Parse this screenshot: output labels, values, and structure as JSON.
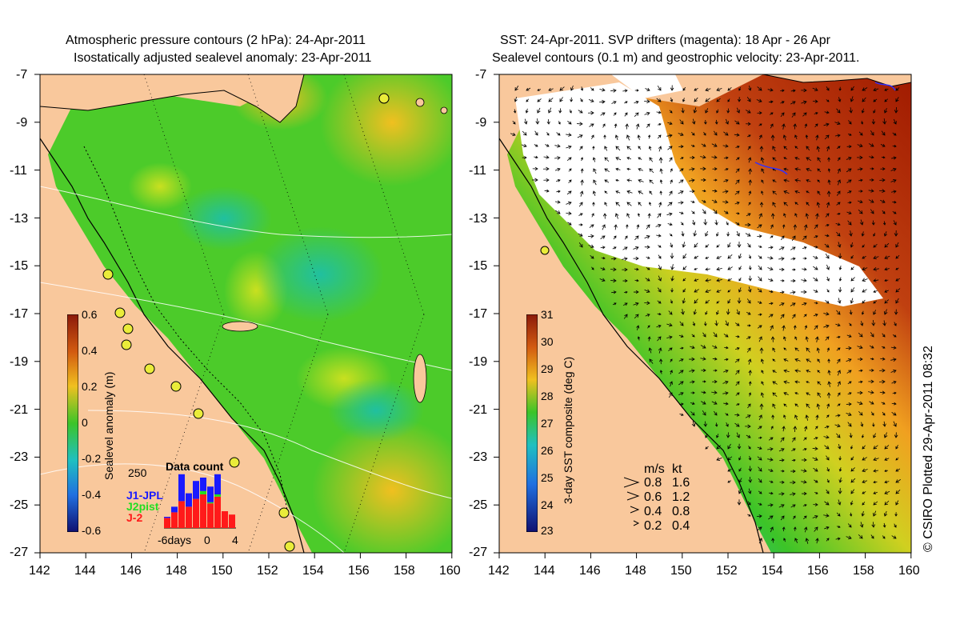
{
  "left_panel": {
    "title_line1": "Atmospheric pressure contours (2 hPa): 24-Apr-2011",
    "title_line2": "Isostatically adjusted sealevel anomaly: 23-Apr-2011",
    "colorbar_label": "Sealevel anomaly (m)",
    "colorbar_ticks": [
      "0.6",
      "0.4",
      "0.2",
      "0",
      "-0.2",
      "-0.4",
      "-0.6"
    ],
    "inset": {
      "title": "Data count",
      "ymax_label": "250",
      "x_labels": [
        "-6days",
        "0",
        "4"
      ],
      "legend": [
        {
          "label": "J1-JPL",
          "color": "#1a1aff"
        },
        {
          "label": "J2pist",
          "color": "#22dd22"
        },
        {
          "label": "J-2",
          "color": "#ff1a1a"
        }
      ],
      "bars": [
        {
          "day": -5,
          "red": 45,
          "blue": 5,
          "green": 0
        },
        {
          "day": -4,
          "red": 70,
          "blue": 25,
          "green": 0
        },
        {
          "day": -3,
          "red": 120,
          "blue": 120,
          "green": 0
        },
        {
          "day": -2,
          "red": 95,
          "blue": 60,
          "green": 0
        },
        {
          "day": -1,
          "red": 130,
          "blue": 80,
          "green": 0
        },
        {
          "day": 0,
          "red": 150,
          "blue": 60,
          "green": 15
        },
        {
          "day": 1,
          "red": 110,
          "blue": 70,
          "green": 5
        },
        {
          "day": 2,
          "red": 140,
          "blue": 90,
          "green": 10
        },
        {
          "day": 3,
          "red": 75,
          "blue": 0,
          "green": 0
        },
        {
          "day": 4,
          "red": 60,
          "blue": 0,
          "green": 0
        }
      ]
    }
  },
  "right_panel": {
    "title_line1": "SST: 24-Apr-2011. SVP drifters (magenta): 18 Apr - 26 Apr",
    "title_line2": "Sealevel contours (0.1 m) and geostrophic velocity: 23-Apr-2011.",
    "colorbar_label": "3-day SST composite (deg C)",
    "colorbar_ticks": [
      "31",
      "30",
      "29",
      "28",
      "27",
      "26",
      "25",
      "24",
      "23"
    ],
    "speed_key": {
      "header_ms": "m/s",
      "header_kt": "kt",
      "rows": [
        {
          "ms": "0.8",
          "kt": "1.6"
        },
        {
          "ms": "0.6",
          "kt": "1.2"
        },
        {
          "ms": "0.4",
          "kt": "0.8"
        },
        {
          "ms": "0.2",
          "kt": "0.4"
        }
      ]
    }
  },
  "axes": {
    "y_labels": [
      "-7",
      "-9",
      "-11",
      "-13",
      "-15",
      "-17",
      "-19",
      "-21",
      "-23",
      "-25",
      "-27"
    ],
    "x_labels": [
      "142",
      "144",
      "146",
      "148",
      "150",
      "152",
      "154",
      "156",
      "158",
      "160"
    ],
    "lon_range": [
      142,
      160
    ],
    "lat_range": [
      -27,
      -7
    ]
  },
  "credit": "© CSIRO Plotted 29-Apr-2011 08:32",
  "colors": {
    "land": "#f9c89c",
    "sea_anomaly_base": "#44cc22",
    "sst_cold": "#1a6fe0",
    "sst_warm": "#b02000"
  }
}
